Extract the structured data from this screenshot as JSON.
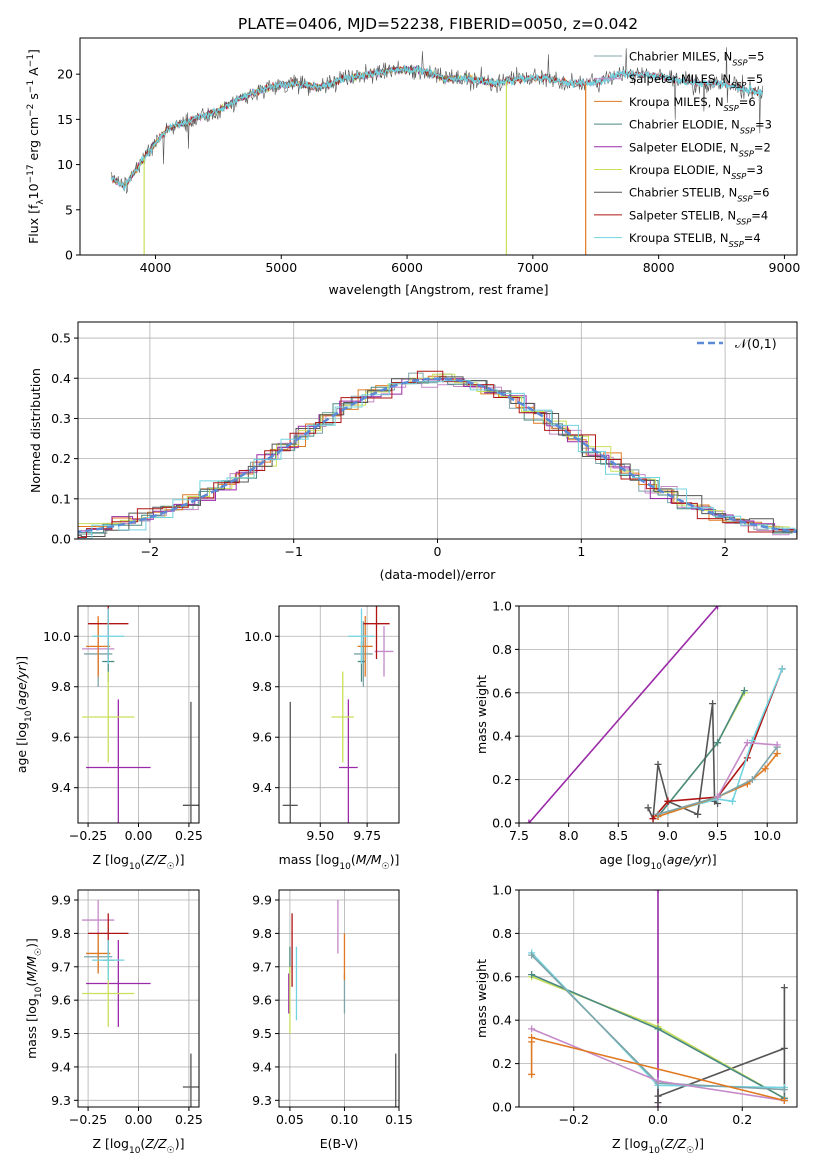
{
  "title": "PLATE=0406, MJD=52238, FIBERID=0050, z=0.042",
  "series": [
    {
      "name": "Chabrier MILES",
      "nssp": "5",
      "color": "#7fa4a8"
    },
    {
      "name": "Salpeter MILES",
      "nssp": "5",
      "color": "#c58ac8"
    },
    {
      "name": "Kroupa MILES",
      "nssp": "6",
      "color": "#e07a22"
    },
    {
      "name": "Chabrier ELODIE",
      "nssp": "3",
      "color": "#4a8a82"
    },
    {
      "name": "Salpeter ELODIE",
      "nssp": "2",
      "color": "#9b2aa8"
    },
    {
      "name": "Kroupa ELODIE",
      "nssp": "3",
      "color": "#c8e05a"
    },
    {
      "name": "Chabrier STELIB",
      "nssp": "6",
      "color": "#555555"
    },
    {
      "name": "Salpeter STELIB",
      "nssp": "4",
      "color": "#b01515"
    },
    {
      "name": "Kroupa STELIB",
      "nssp": "4",
      "color": "#72d4e0"
    }
  ],
  "chart_data": [
    {
      "id": "spectrum",
      "type": "line",
      "xlabel": "wavelength [Angstrom, rest frame]",
      "ylabel": "Flux [f_λ 10^-17 erg cm^-2 s^-1 A^-1]",
      "xlim": [
        3400,
        9100
      ],
      "ylim": [
        0,
        24
      ],
      "xticks": [
        4000,
        5000,
        6000,
        7000,
        8000,
        9000
      ],
      "yticks": [
        0,
        5,
        10,
        15,
        20
      ],
      "legend": "top-right",
      "continuum": [
        [
          3650,
          8.5
        ],
        [
          3750,
          7.5
        ],
        [
          3850,
          9.5
        ],
        [
          3950,
          11.5
        ],
        [
          4100,
          14.0
        ],
        [
          4300,
          15.0
        ],
        [
          4500,
          16.0
        ],
        [
          4700,
          17.5
        ],
        [
          4900,
          18.5
        ],
        [
          5100,
          19.0
        ],
        [
          5300,
          18.5
        ],
        [
          5500,
          19.5
        ],
        [
          5700,
          20.0
        ],
        [
          5900,
          20.5
        ],
        [
          6100,
          20.5
        ],
        [
          6300,
          19.5
        ],
        [
          6500,
          19.5
        ],
        [
          6700,
          19.0
        ],
        [
          6900,
          19.5
        ],
        [
          7100,
          19.5
        ],
        [
          7300,
          19.0
        ],
        [
          7500,
          19.0
        ],
        [
          7700,
          20.0
        ],
        [
          7900,
          20.0
        ],
        [
          8100,
          19.5
        ],
        [
          8300,
          19.0
        ],
        [
          8500,
          19.0
        ],
        [
          8800,
          18.0
        ]
      ],
      "data_extent": [
        3650,
        8830
      ],
      "dips": [
        {
          "x": 3910,
          "series": "Kroupa ELODIE"
        },
        {
          "x": 6790,
          "series": "Kroupa ELODIE"
        },
        {
          "x": 7420,
          "series": "Kroupa MILES"
        }
      ]
    },
    {
      "id": "residuals",
      "type": "histogram",
      "xlabel": "(data-model)/error",
      "ylabel": "Normed distribution",
      "xlim": [
        -2.5,
        2.5
      ],
      "ylim": [
        0,
        0.54
      ],
      "xticks": [
        -2,
        -1,
        0,
        1,
        2
      ],
      "yticks": [
        0.0,
        0.1,
        0.2,
        0.3,
        0.4,
        0.5
      ],
      "grid": true,
      "legend": "top-right",
      "reference_label": "𝒩(0,1)",
      "reference_color": "#5b8ad6"
    },
    {
      "id": "age-vs-Z",
      "type": "errorbar",
      "xlabel": "Z [log10(Z/Z☉)]",
      "ylabel": "age  [log10(age/yr)]",
      "xlim": [
        -0.3,
        0.3
      ],
      "ylim": [
        9.26,
        10.12
      ],
      "xticks": [
        -0.25,
        0.0,
        0.25
      ],
      "yticks": [
        9.4,
        9.6,
        9.8,
        10.0
      ],
      "grid": true,
      "points": [
        {
          "series": "Chabrier MILES",
          "x": -0.2,
          "xerr": 0.07,
          "y": 9.93,
          "yerr": 0.13
        },
        {
          "series": "Salpeter MILES",
          "x": -0.2,
          "xerr": 0.08,
          "y": 9.95,
          "yerr": 0.1
        },
        {
          "series": "Kroupa MILES",
          "x": -0.2,
          "xerr": 0.06,
          "y": 9.96,
          "yerr": 0.12
        },
        {
          "series": "Chabrier ELODIE",
          "x": -0.15,
          "xerr": 0.03,
          "y": 9.9,
          "yerr": 0.08
        },
        {
          "series": "Salpeter ELODIE",
          "x": -0.1,
          "xerr": 0.16,
          "y": 9.48,
          "yerr": 0.27
        },
        {
          "series": "Kroupa ELODIE",
          "x": -0.15,
          "xerr": 0.13,
          "y": 9.68,
          "yerr": 0.18
        },
        {
          "series": "Chabrier STELIB",
          "x": 0.26,
          "xerr": 0.04,
          "y": 9.33,
          "yerr": 0.41
        },
        {
          "series": "Salpeter STELIB",
          "x": -0.15,
          "xerr": 0.1,
          "y": 10.05,
          "yerr": 0.14
        },
        {
          "series": "Kroupa STELIB",
          "x": -0.15,
          "xerr": 0.08,
          "y": 10.0,
          "yerr": 0.11
        }
      ]
    },
    {
      "id": "age-vs-mass",
      "type": "errorbar",
      "xlabel": "mass [log10(M/M☉)]",
      "ylabel": "",
      "xlim": [
        9.28,
        9.92
      ],
      "ylim": [
        9.26,
        10.12
      ],
      "xticks": [
        9.5,
        9.75
      ],
      "yticks": [
        9.4,
        9.6,
        9.8,
        10.0
      ],
      "grid": true,
      "points": [
        {
          "series": "Chabrier MILES",
          "x": 9.73,
          "xerr": 0.05,
          "y": 9.93,
          "yerr": 0.13
        },
        {
          "series": "Salpeter MILES",
          "x": 9.84,
          "xerr": 0.05,
          "y": 9.94,
          "yerr": 0.1
        },
        {
          "series": "Kroupa MILES",
          "x": 9.74,
          "xerr": 0.04,
          "y": 9.96,
          "yerr": 0.12
        },
        {
          "series": "Chabrier ELODIE",
          "x": 9.72,
          "xerr": 0.02,
          "y": 9.9,
          "yerr": 0.08
        },
        {
          "series": "Salpeter ELODIE",
          "x": 9.65,
          "xerr": 0.05,
          "y": 9.48,
          "yerr": 0.27
        },
        {
          "series": "Kroupa ELODIE",
          "x": 9.62,
          "xerr": 0.06,
          "y": 9.68,
          "yerr": 0.18
        },
        {
          "series": "Chabrier STELIB",
          "x": 9.34,
          "xerr": 0.04,
          "y": 9.33,
          "yerr": 0.41
        },
        {
          "series": "Salpeter STELIB",
          "x": 9.8,
          "xerr": 0.07,
          "y": 10.05,
          "yerr": 0.14
        },
        {
          "series": "Kroupa STELIB",
          "x": 9.72,
          "xerr": 0.07,
          "y": 10.0,
          "yerr": 0.11
        }
      ]
    },
    {
      "id": "weight-vs-age",
      "type": "line",
      "xlabel": "age  [log10(age/yr)]",
      "ylabel": "mass weight",
      "xlim": [
        7.5,
        10.3
      ],
      "ylim": [
        0,
        1.0
      ],
      "xticks": [
        7.5,
        8.0,
        8.5,
        9.0,
        9.5,
        10.0
      ],
      "yticks": [
        0.0,
        0.2,
        0.4,
        0.6,
        0.8,
        1.0
      ],
      "grid": true,
      "lines": [
        {
          "series": "Salpeter ELODIE",
          "x": [
            7.6,
            9.5
          ],
          "y": [
            0.0,
            1.0
          ]
        },
        {
          "series": "Kroupa ELODIE",
          "x": [
            8.9,
            9.5,
            9.77
          ],
          "y": [
            0.03,
            0.37,
            0.6
          ]
        },
        {
          "series": "Chabrier ELODIE",
          "x": [
            8.9,
            9.5,
            9.77
          ],
          "y": [
            0.03,
            0.37,
            0.61
          ]
        },
        {
          "series": "Chabrier STELIB",
          "x": [
            8.8,
            8.85,
            8.9,
            9.0,
            9.3,
            9.45,
            9.47,
            9.5
          ],
          "y": [
            0.07,
            0.02,
            0.27,
            0.1,
            0.04,
            0.55,
            0.1,
            0.09
          ]
        },
        {
          "series": "Salpeter STELIB",
          "x": [
            8.85,
            9.0,
            9.5,
            9.8,
            10.15
          ],
          "y": [
            0.02,
            0.1,
            0.12,
            0.3,
            0.71
          ]
        },
        {
          "series": "Kroupa STELIB",
          "x": [
            9.0,
            9.5,
            9.65,
            9.85,
            10.15
          ],
          "y": [
            0.05,
            0.11,
            0.1,
            0.38,
            0.71
          ]
        },
        {
          "series": "Kroupa MILES",
          "x": [
            8.9,
            9.5,
            9.8,
            9.98,
            10.1
          ],
          "y": [
            0.03,
            0.12,
            0.18,
            0.25,
            0.32
          ]
        },
        {
          "series": "Chabrier MILES",
          "x": [
            8.9,
            9.5,
            9.85,
            10.1
          ],
          "y": [
            0.04,
            0.12,
            0.2,
            0.35
          ]
        },
        {
          "series": "Salpeter MILES",
          "x": [
            9.5,
            9.8,
            10.1
          ],
          "y": [
            0.12,
            0.37,
            0.36
          ]
        }
      ]
    },
    {
      "id": "mass-vs-Z",
      "type": "errorbar",
      "xlabel": "Z [log10(Z/Z☉)]",
      "ylabel": "mass [log10(M/M☉)]",
      "xlim": [
        -0.3,
        0.3
      ],
      "ylim": [
        9.28,
        9.93
      ],
      "xticks": [
        -0.25,
        0.0,
        0.25
      ],
      "yticks": [
        9.3,
        9.4,
        9.5,
        9.6,
        9.7,
        9.8,
        9.9
      ],
      "grid": true,
      "points": [
        {
          "series": "Chabrier MILES",
          "x": -0.2,
          "xerr": 0.07,
          "y": 9.73,
          "yerr": 0.05
        },
        {
          "series": "Salpeter MILES",
          "x": -0.2,
          "xerr": 0.08,
          "y": 9.84,
          "yerr": 0.06
        },
        {
          "series": "Kroupa MILES",
          "x": -0.2,
          "xerr": 0.06,
          "y": 9.74,
          "yerr": 0.06
        },
        {
          "series": "Chabrier ELODIE",
          "x": -0.15,
          "xerr": 0.03,
          "y": 9.72,
          "yerr": 0.04
        },
        {
          "series": "Salpeter ELODIE",
          "x": -0.1,
          "xerr": 0.16,
          "y": 9.65,
          "yerr": 0.13
        },
        {
          "series": "Kroupa ELODIE",
          "x": -0.15,
          "xerr": 0.13,
          "y": 9.62,
          "yerr": 0.1
        },
        {
          "series": "Chabrier STELIB",
          "x": 0.26,
          "xerr": 0.04,
          "y": 9.34,
          "yerr": 0.1
        },
        {
          "series": "Salpeter STELIB",
          "x": -0.15,
          "xerr": 0.1,
          "y": 9.8,
          "yerr": 0.06
        },
        {
          "series": "Kroupa STELIB",
          "x": -0.15,
          "xerr": 0.08,
          "y": 9.72,
          "yerr": 0.06
        }
      ]
    },
    {
      "id": "mass-vs-EBV",
      "type": "errorbar",
      "xlabel": "E(B-V)",
      "ylabel": "",
      "xlim": [
        0.04,
        0.15
      ],
      "ylim": [
        9.28,
        9.93
      ],
      "xticks": [
        0.05,
        0.1,
        0.15
      ],
      "yticks": [
        9.3,
        9.4,
        9.5,
        9.6,
        9.7,
        9.8,
        9.9
      ],
      "grid": true,
      "points": [
        {
          "series": "Chabrier MILES",
          "x": 0.1,
          "xerr": 0,
          "y": 9.62,
          "yerr": 0.06
        },
        {
          "series": "Salpeter MILES",
          "x": 0.094,
          "xerr": 0,
          "y": 9.82,
          "yerr": 0.08
        },
        {
          "series": "Kroupa MILES",
          "x": 0.1,
          "xerr": 0,
          "y": 9.73,
          "yerr": 0.07
        },
        {
          "series": "Chabrier ELODIE",
          "x": 0.05,
          "xerr": 0,
          "y": 9.72,
          "yerr": 0.04
        },
        {
          "series": "Salpeter ELODIE",
          "x": 0.049,
          "xerr": 0,
          "y": 9.62,
          "yerr": 0.06
        },
        {
          "series": "Kroupa ELODIE",
          "x": 0.05,
          "xerr": 0,
          "y": 9.6,
          "yerr": 0.1
        },
        {
          "series": "Chabrier STELIB",
          "x": 0.147,
          "xerr": 0,
          "y": 9.34,
          "yerr": 0.1
        },
        {
          "series": "Salpeter STELIB",
          "x": 0.052,
          "xerr": 0,
          "y": 9.75,
          "yerr": 0.11
        },
        {
          "series": "Kroupa STELIB",
          "x": 0.056,
          "xerr": 0,
          "y": 9.65,
          "yerr": 0.11
        }
      ]
    },
    {
      "id": "weight-vs-Z",
      "type": "line",
      "xlabel": "Z [log10(Z/Z☉)]",
      "ylabel": "mass weight",
      "xlim": [
        -0.33,
        0.33
      ],
      "ylim": [
        0,
        1.0
      ],
      "xticks": [
        -0.2,
        0.0,
        0.2
      ],
      "yticks": [
        0.0,
        0.2,
        0.4,
        0.6,
        0.8,
        1.0
      ],
      "grid": true,
      "lines": [
        {
          "series": "Salpeter ELODIE",
          "x": [
            0.0,
            0.0
          ],
          "y": [
            0.0,
            1.0
          ]
        },
        {
          "series": "Chabrier STELIB",
          "x": [
            0.0,
            0.3,
            0.3,
            0.3
          ],
          "y": [
            0.05,
            0.27,
            0.55,
            0.03
          ]
        },
        {
          "series": "Chabrier STELIB",
          "x": [
            0.0,
            0.0
          ],
          "y": [
            0.02,
            0.1
          ]
        },
        {
          "series": "Kroupa ELODIE",
          "x": [
            -0.3,
            0.0,
            0.3
          ],
          "y": [
            0.6,
            0.37,
            0.04
          ]
        },
        {
          "series": "Chabrier ELODIE",
          "x": [
            -0.3,
            0.0,
            0.3
          ],
          "y": [
            0.61,
            0.36,
            0.04
          ]
        },
        {
          "series": "Kroupa STELIB",
          "x": [
            -0.3,
            0.0,
            0.3
          ],
          "y": [
            0.71,
            0.1,
            0.09
          ]
        },
        {
          "series": "Chabrier MILES",
          "x": [
            -0.3,
            0.0,
            0.3
          ],
          "y": [
            0.7,
            0.11,
            0.08
          ]
        },
        {
          "series": "Salpeter MILES",
          "x": [
            -0.3,
            0.0,
            0.3
          ],
          "y": [
            0.36,
            0.12,
            0.03
          ]
        },
        {
          "series": "Kroupa MILES",
          "x": [
            -0.3,
            0.3
          ],
          "y": [
            0.32,
            0.03
          ]
        },
        {
          "series": "Kroupa MILES",
          "x": [
            -0.3,
            -0.3
          ],
          "y": [
            0.15,
            0.3
          ]
        }
      ]
    }
  ]
}
